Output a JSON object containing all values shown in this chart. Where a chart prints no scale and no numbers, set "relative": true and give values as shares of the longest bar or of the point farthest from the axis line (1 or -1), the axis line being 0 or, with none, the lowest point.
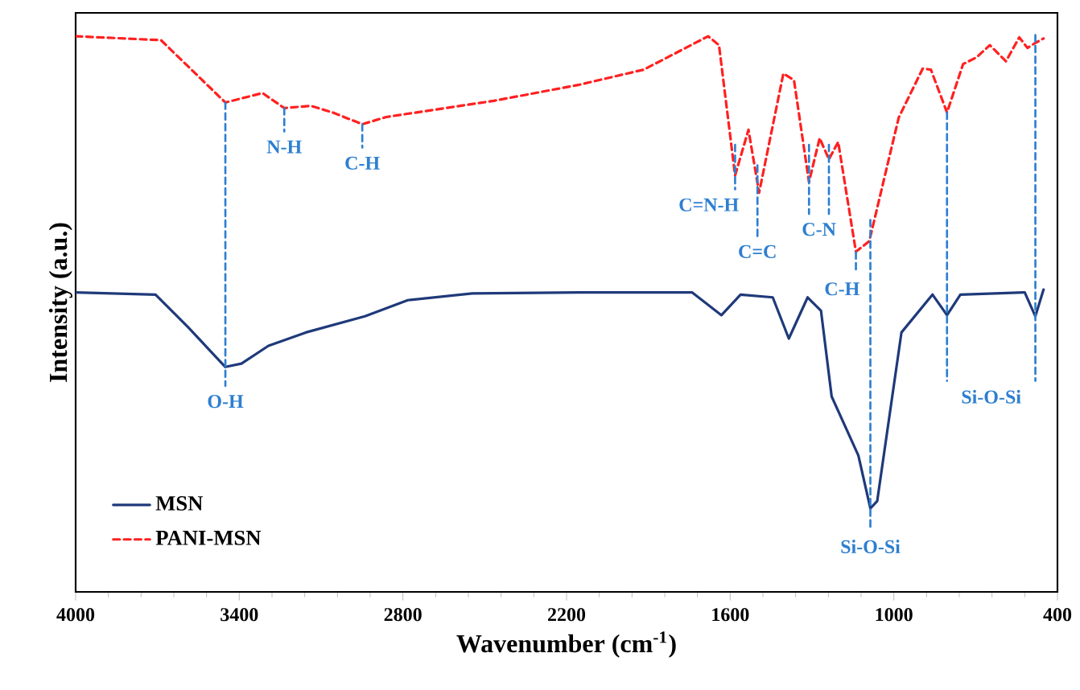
{
  "chart_data": {
    "type": "line",
    "xlabel": "Wavenumber (cm$^{-1}$)",
    "ylabel": "Intensity (a.u.)",
    "relative": true,
    "xlim": [
      4000,
      400
    ],
    "xticks": [
      4000,
      3400,
      2800,
      2200,
      1600,
      1000,
      400
    ],
    "legend": "bottom left",
    "series": [
      {
        "name": "MSN",
        "color": "#1f3a7a",
        "line_style": "solid",
        "x": [
          4000,
          3707,
          3589,
          3451,
          3392,
          3293,
          3156,
          2939,
          2782,
          2546,
          2153,
          1740,
          1632,
          1562,
          1444,
          1385,
          1316,
          1267,
          1228,
          1130,
          1086,
          1061,
          972,
          858,
          805,
          756,
          520,
          481,
          451
        ],
        "values": [
          0.538,
          0.534,
          0.476,
          0.404,
          0.41,
          0.442,
          0.466,
          0.495,
          0.524,
          0.536,
          0.538,
          0.538,
          0.497,
          0.534,
          0.529,
          0.455,
          0.529,
          0.505,
          0.351,
          0.245,
          0.15,
          0.163,
          0.466,
          0.534,
          0.497,
          0.534,
          0.538,
          0.495,
          0.543
        ]
      },
      {
        "name": "PANI-MSN",
        "color": "#ff2020",
        "line_style": "dashed",
        "x": [
          4000,
          3687,
          3451,
          3315,
          3235,
          3138,
          3057,
          2949,
          2861,
          2467,
          2153,
          1917,
          1681,
          1641,
          1582,
          1533,
          1494,
          1405,
          1366,
          1311,
          1272,
          1238,
          1204,
          1139,
          1090,
          982,
          894,
          864,
          805,
          746,
          697,
          648,
          589,
          540,
          510,
          481,
          451
        ],
        "values": [
          0.998,
          0.991,
          0.879,
          0.896,
          0.869,
          0.873,
          0.861,
          0.84,
          0.853,
          0.882,
          0.911,
          0.938,
          0.998,
          0.982,
          0.748,
          0.83,
          0.717,
          0.931,
          0.919,
          0.736,
          0.815,
          0.777,
          0.808,
          0.611,
          0.63,
          0.852,
          0.94,
          0.938,
          0.861,
          0.948,
          0.96,
          0.982,
          0.953,
          0.996,
          0.977,
          0.986,
          0.994
        ]
      },
      {
        "color": "#2e7fd0",
        "line_style": "dashed",
        "x": [
          3451,
          3451
        ],
        "values": [
          0.879,
          0.37
        ]
      },
      {
        "color": "#2e7fd0",
        "line_style": "dashed",
        "x": [
          3235,
          3235
        ],
        "values": [
          0.869,
          0.827
        ]
      },
      {
        "color": "#2e7fd0",
        "line_style": "dashed",
        "x": [
          2949,
          2949
        ],
        "values": [
          0.84,
          0.798
        ]
      },
      {
        "color": "#2e7fd0",
        "line_style": "dashed",
        "x": [
          1582,
          1582
        ],
        "values": [
          0.803,
          0.723
        ]
      },
      {
        "color": "#2e7fd0",
        "line_style": "dashed",
        "x": [
          1500,
          1500
        ],
        "values": [
          0.766,
          0.639
        ]
      },
      {
        "color": "#2e7fd0",
        "line_style": "dashed",
        "x": [
          1311,
          1311,
          null,
          1238,
          1238
        ],
        "values": [
          0.803,
          0.679,
          null,
          0.803,
          0.679
        ]
      },
      {
        "color": "#2e7fd0",
        "line_style": "dashed",
        "x": [
          1139,
          1139
        ],
        "values": [
          0.61,
          0.572
        ]
      },
      {
        "color": "#2e7fd0",
        "line_style": "dashed",
        "x": [
          1086,
          1086
        ],
        "values": [
          0.668,
          0.11
        ]
      },
      {
        "color": "#2e7fd0",
        "line_style": "dashed",
        "x": [
          805,
          805,
          null,
          481,
          481
        ],
        "values": [
          0.861,
          0.379,
          null,
          1.0,
          0.379
        ]
      }
    ],
    "annotations": [
      "O-H",
      "N-H",
      "C-H",
      "C=N-H",
      "C=C",
      "C-N",
      "C-H",
      "Si-O-Si",
      "Si-O-Si"
    ]
  }
}
